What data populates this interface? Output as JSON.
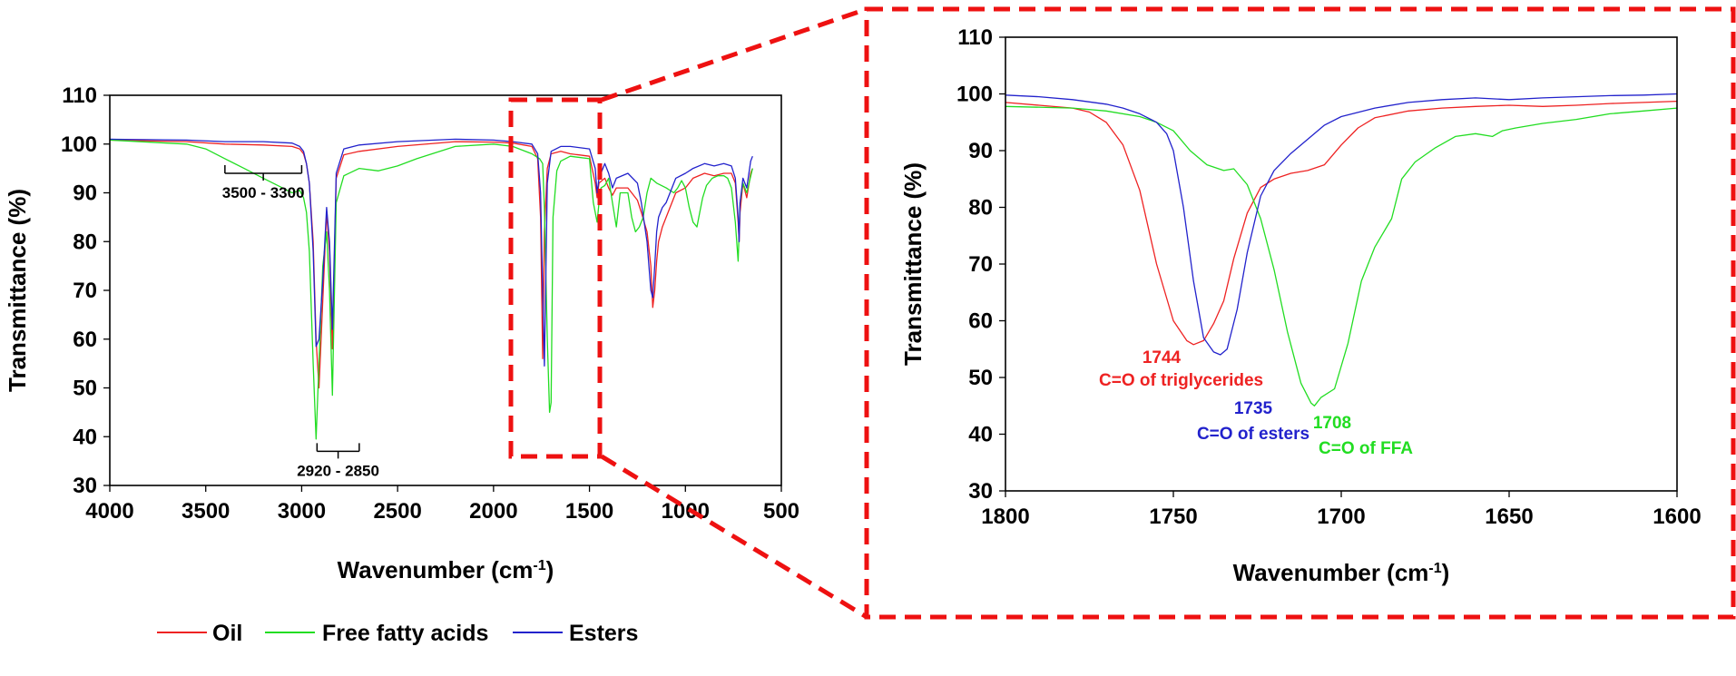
{
  "colors": {
    "oil": "#ee2222",
    "ffa": "#22dd22",
    "esters": "#2222cc",
    "highlight": "#ee1111"
  },
  "legend": [
    {
      "label": "Oil",
      "color": "#ee2222"
    },
    {
      "label": "Free fatty acids",
      "color": "#22dd22"
    },
    {
      "label": "Esters",
      "color": "#2222cc"
    }
  ],
  "chart_data": [
    {
      "type": "line",
      "title": "",
      "xlabel": "Wavenumber (cm",
      "xlabel_sup": "-1",
      "xlabel_close": ")",
      "ylabel": "Transmittance (%)",
      "xlim": [
        4000,
        500
      ],
      "ylim": [
        30,
        110
      ],
      "xticks": [
        4000,
        3500,
        3000,
        2500,
        2000,
        1500,
        1000,
        500
      ],
      "yticks": [
        30,
        40,
        50,
        60,
        70,
        80,
        90,
        100,
        110
      ],
      "annotations": [
        {
          "text": "3500 - 3300",
          "from": 3400,
          "to": 3000,
          "y": 94
        },
        {
          "text": "2920 - 2850",
          "from": 2920,
          "to": 2700,
          "y": 37
        }
      ],
      "series": [
        {
          "name": "Oil",
          "color": "#ee2222",
          "x": [
            4000,
            3600,
            3400,
            3200,
            3050,
            3010,
            2990,
            2975,
            2960,
            2940,
            2925,
            2910,
            2890,
            2870,
            2855,
            2840,
            2820,
            2780,
            2700,
            2500,
            2200,
            2000,
            1900,
            1800,
            1770,
            1755,
            1744,
            1735,
            1720,
            1700,
            1650,
            1600,
            1500,
            1470,
            1460,
            1450,
            1420,
            1400,
            1380,
            1360,
            1300,
            1250,
            1230,
            1200,
            1180,
            1170,
            1160,
            1150,
            1140,
            1120,
            1100,
            1050,
            1000,
            960,
            900,
            850,
            800,
            760,
            740,
            725,
            720,
            715,
            700,
            680,
            660,
            650
          ],
          "y": [
            100.8,
            100.5,
            100.0,
            99.8,
            99.5,
            99.0,
            98.0,
            96.0,
            92.0,
            80.0,
            60.0,
            50.0,
            68.0,
            86.0,
            78.0,
            58.0,
            93.0,
            97.8,
            98.5,
            99.5,
            100.5,
            100.4,
            100.2,
            99.5,
            97.0,
            85.0,
            56.0,
            82.0,
            95.0,
            98.0,
            98.5,
            98.0,
            97.5,
            92.0,
            89.0,
            92.0,
            93.0,
            91.0,
            89.5,
            91.0,
            91.0,
            88.5,
            86.0,
            82.0,
            75.0,
            66.5,
            70.0,
            76.0,
            80.0,
            83.0,
            85.0,
            90.0,
            91.0,
            93.0,
            94.0,
            93.5,
            94.0,
            94.0,
            92.0,
            84.0,
            80.0,
            86.0,
            92.0,
            89.0,
            94.0,
            95.0
          ]
        },
        {
          "name": "Free fatty acids",
          "color": "#22dd22",
          "x": [
            4000,
            3600,
            3500,
            3400,
            3300,
            3200,
            3100,
            3050,
            3010,
            2990,
            2975,
            2960,
            2940,
            2925,
            2910,
            2890,
            2870,
            2855,
            2840,
            2820,
            2780,
            2700,
            2600,
            2500,
            2400,
            2200,
            2000,
            1900,
            1800,
            1760,
            1744,
            1735,
            1720,
            1708,
            1700,
            1690,
            1670,
            1650,
            1600,
            1500,
            1480,
            1460,
            1450,
            1440,
            1420,
            1400,
            1380,
            1360,
            1340,
            1300,
            1280,
            1260,
            1240,
            1220,
            1200,
            1180,
            1150,
            1100,
            1060,
            1040,
            1020,
            1000,
            980,
            960,
            940,
            925,
            910,
            890,
            860,
            830,
            800,
            780,
            760,
            740,
            725,
            720,
            715,
            700,
            680,
            650
          ],
          "y": [
            100.8,
            100.0,
            99.0,
            97.0,
            95.0,
            93.0,
            91.0,
            90.0,
            90.5,
            89.0,
            86.0,
            78.0,
            55.0,
            39.5,
            55.0,
            75.0,
            82.0,
            70.0,
            48.5,
            88.0,
            93.5,
            95.0,
            94.5,
            95.5,
            97.0,
            99.5,
            100.0,
            99.5,
            98.0,
            97.0,
            96.0,
            87.0,
            60.0,
            45.0,
            47.0,
            85.0,
            94.5,
            96.5,
            97.5,
            97.0,
            88.0,
            84.0,
            88.0,
            91.0,
            91.5,
            93.0,
            88.0,
            83.0,
            90.0,
            90.0,
            85.0,
            82.0,
            83.0,
            85.0,
            90.0,
            93.0,
            92.0,
            91.0,
            90.0,
            91.0,
            92.5,
            91.0,
            87.0,
            84.0,
            83.0,
            86.0,
            89.0,
            91.5,
            93.0,
            93.5,
            93.5,
            93.0,
            91.0,
            84.0,
            76.0,
            82.0,
            88.0,
            92.0,
            90.0,
            95.0
          ]
        },
        {
          "name": "Esters",
          "color": "#2222cc",
          "x": [
            4000,
            3600,
            3400,
            3200,
            3050,
            3010,
            2990,
            2975,
            2960,
            2940,
            2925,
            2910,
            2890,
            2870,
            2855,
            2840,
            2820,
            2780,
            2700,
            2500,
            2200,
            2000,
            1900,
            1800,
            1770,
            1755,
            1744,
            1735,
            1720,
            1700,
            1650,
            1600,
            1500,
            1470,
            1460,
            1450,
            1420,
            1400,
            1380,
            1360,
            1300,
            1250,
            1230,
            1200,
            1180,
            1170,
            1160,
            1150,
            1140,
            1120,
            1100,
            1050,
            1000,
            960,
            900,
            850,
            800,
            760,
            740,
            725,
            720,
            715,
            700,
            680,
            660,
            650
          ],
          "y": [
            101.0,
            100.8,
            100.5,
            100.5,
            100.2,
            99.5,
            98.5,
            96.0,
            92.0,
            78.0,
            58.5,
            60.0,
            72.0,
            87.0,
            80.0,
            62.0,
            94.0,
            99.0,
            99.8,
            100.5,
            101.0,
            100.8,
            100.5,
            100.0,
            98.0,
            90.0,
            70.0,
            54.5,
            92.0,
            98.5,
            99.5,
            99.5,
            99.0,
            95.0,
            90.0,
            93.0,
            96.0,
            94.0,
            91.0,
            93.0,
            94.0,
            92.0,
            88.0,
            80.0,
            70.0,
            68.5,
            75.0,
            82.0,
            85.0,
            87.0,
            88.0,
            93.0,
            94.0,
            95.0,
            96.0,
            95.5,
            96.0,
            95.5,
            93.0,
            85.0,
            80.0,
            88.0,
            93.0,
            91.0,
            96.5,
            97.5
          ]
        }
      ]
    },
    {
      "type": "line",
      "title": "",
      "xlabel": "Wavenumber (cm",
      "xlabel_sup": "-1",
      "xlabel_close": ")",
      "ylabel": "Transmittance (%)",
      "xlim": [
        1800,
        1600
      ],
      "ylim": [
        30,
        110
      ],
      "xticks": [
        1800,
        1750,
        1700,
        1650,
        1600
      ],
      "yticks": [
        30,
        40,
        50,
        60,
        70,
        80,
        90,
        100,
        110
      ],
      "annotations": [
        {
          "number": "1744",
          "label": "C=O of triglycerides",
          "color": "#ee2222"
        },
        {
          "number": "1735",
          "label": "C=O of esters",
          "color": "#2222cc"
        },
        {
          "number": "1708",
          "label": "C=O of FFA",
          "color": "#22dd22"
        }
      ],
      "series": [
        {
          "name": "Oil",
          "color": "#ee2222",
          "x": [
            1800,
            1790,
            1780,
            1775,
            1770,
            1765,
            1760,
            1755,
            1750,
            1746,
            1744,
            1741,
            1738,
            1735,
            1732,
            1728,
            1724,
            1720,
            1715,
            1710,
            1705,
            1700,
            1695,
            1690,
            1680,
            1670,
            1660,
            1650,
            1640,
            1630,
            1620,
            1610,
            1600
          ],
          "y": [
            98.5,
            98.0,
            97.5,
            96.8,
            95.0,
            91.0,
            83.0,
            70.0,
            60.0,
            56.5,
            55.8,
            56.5,
            59.5,
            63.5,
            71.0,
            79.0,
            83.5,
            85.0,
            86.0,
            86.5,
            87.5,
            91.0,
            94.0,
            95.8,
            97.0,
            97.5,
            97.8,
            98.0,
            97.8,
            98.0,
            98.3,
            98.5,
            98.7
          ]
        },
        {
          "name": "Free fatty acids",
          "color": "#22dd22",
          "x": [
            1800,
            1780,
            1770,
            1760,
            1755,
            1750,
            1745,
            1740,
            1735,
            1732,
            1728,
            1724,
            1720,
            1716,
            1712,
            1709,
            1708,
            1706,
            1702,
            1698,
            1694,
            1690,
            1685,
            1682,
            1678,
            1672,
            1666,
            1660,
            1655,
            1652,
            1648,
            1640,
            1630,
            1620,
            1610,
            1600
          ],
          "y": [
            97.8,
            97.5,
            97.0,
            96.0,
            95.0,
            93.5,
            90.0,
            87.5,
            86.5,
            86.8,
            84.0,
            78.0,
            69.0,
            58.0,
            49.0,
            45.5,
            45.0,
            46.5,
            48.0,
            56.0,
            67.0,
            73.0,
            78.0,
            85.0,
            88.0,
            90.5,
            92.5,
            93.0,
            92.5,
            93.5,
            94.0,
            94.8,
            95.5,
            96.5,
            97.0,
            97.5
          ]
        },
        {
          "name": "Esters",
          "color": "#2222cc",
          "x": [
            1800,
            1790,
            1780,
            1770,
            1765,
            1760,
            1755,
            1752,
            1750,
            1747,
            1744,
            1741,
            1738,
            1736,
            1734,
            1731,
            1728,
            1724,
            1720,
            1715,
            1710,
            1705,
            1700,
            1690,
            1680,
            1670,
            1660,
            1650,
            1640,
            1630,
            1620,
            1610,
            1600
          ],
          "y": [
            99.8,
            99.5,
            99.0,
            98.2,
            97.5,
            96.5,
            95.0,
            93.0,
            90.0,
            80.0,
            67.0,
            57.0,
            54.5,
            54.0,
            55.0,
            62.0,
            72.0,
            82.0,
            86.5,
            89.5,
            92.0,
            94.5,
            96.0,
            97.5,
            98.5,
            99.0,
            99.3,
            99.0,
            99.3,
            99.5,
            99.7,
            99.8,
            100.0
          ]
        }
      ]
    }
  ]
}
